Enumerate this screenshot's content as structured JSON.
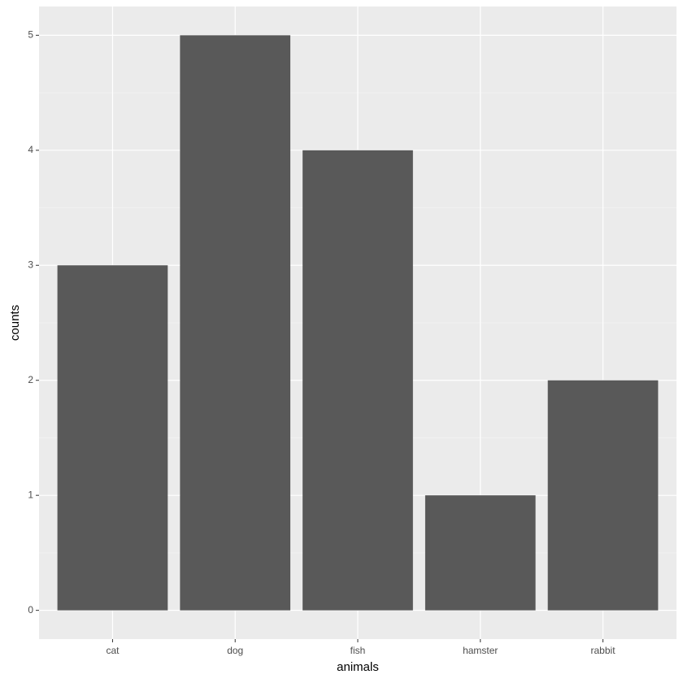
{
  "chart_data": {
    "type": "bar",
    "x_label": "animals",
    "y_label": "counts",
    "categories": [
      "cat",
      "dog",
      "fish",
      "hamster",
      "rabbit"
    ],
    "values": [
      3,
      5,
      4,
      1,
      2
    ],
    "color": "#595959",
    "ylim": [
      -0.25,
      5.25
    ],
    "yticks": [
      0,
      1,
      2,
      3,
      4,
      5
    ],
    "grid": true
  }
}
